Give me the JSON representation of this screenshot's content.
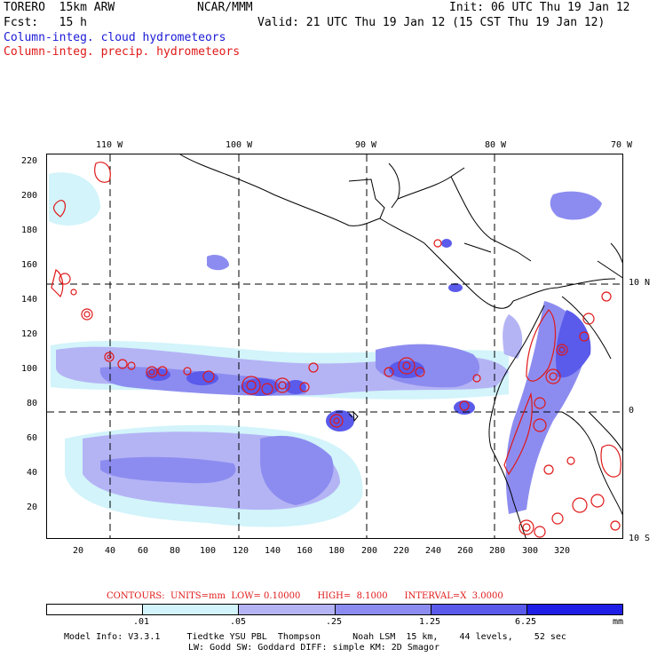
{
  "header": {
    "model": "TORERO  15km ARW",
    "org": "NCAR/MMM",
    "init": "Init: 06 UTC Thu 19 Jan 12",
    "fcst": "Fcst:   15 h",
    "valid": "Valid: 21 UTC Thu 19 Jan 12 (15 CST Thu 19 Jan 12)",
    "line_cloud": "Column-integ. cloud hydrometeors",
    "line_precip": "Column-integ. precip. hydrometeors"
  },
  "map": {
    "lon_labels": [
      "110 W",
      "100 W",
      "90 W",
      "80 W",
      "70 W"
    ],
    "lat_labels": [
      "10 N",
      "0",
      "10 S"
    ],
    "y_ticks": [
      "220",
      "200",
      "180",
      "160",
      "140",
      "120",
      "100",
      "80",
      "60",
      "40",
      "20"
    ],
    "x_ticks": [
      "20",
      "40",
      "60",
      "80",
      "100",
      "120",
      "140",
      "160",
      "180",
      "200",
      "220",
      "240",
      "260",
      "280",
      "300",
      "320"
    ]
  },
  "contours": "CONTOURS:  UNITS=mm  LOW= 0.10000      HIGH=  8.1000      INTERVAL=X  3.0000",
  "legend": {
    "colors": [
      "#ffffff",
      "#d2f4fa",
      "#b4b4f5",
      "#8c8cf0",
      "#5a5aeb",
      "#1e1ee6"
    ],
    "labels": [
      ".01",
      ".05",
      ".25",
      "1.25",
      "6.25",
      "mm"
    ]
  },
  "footer": {
    "line1": "Model Info: V3.3.1     Tiedtke YSU PBL  Thompson      Noah LSM  15 km,    44 levels,    52 sec",
    "line2": "LW: Godd SW: Goddard DIFF: simple KM: 2D Smagor"
  },
  "colors": {
    "cloud": "#1a1ad6",
    "precip": "#e01818"
  }
}
